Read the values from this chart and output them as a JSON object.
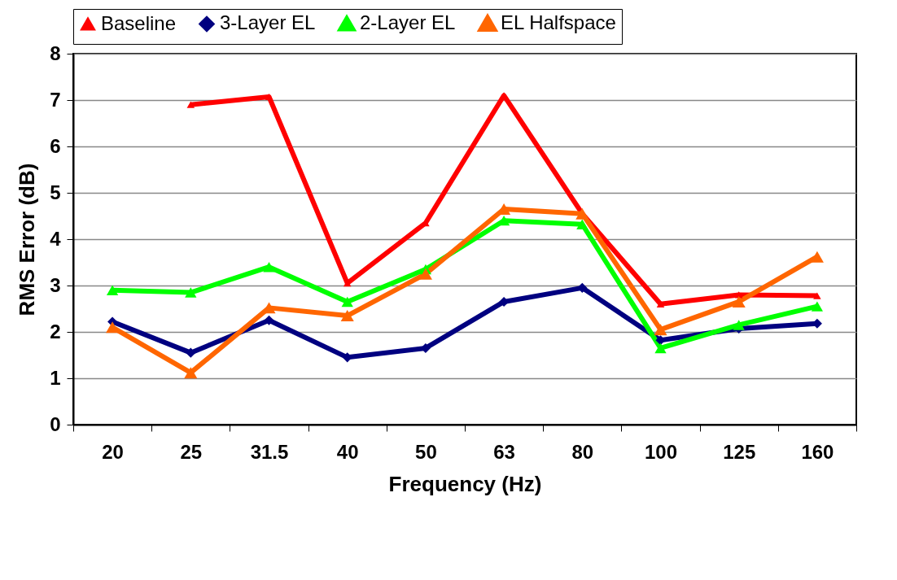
{
  "chart_data": {
    "type": "line",
    "xlabel": "Frequency (Hz)",
    "ylabel": "RMS Error (dB)",
    "categories": [
      "20",
      "25",
      "31.5",
      "40",
      "50",
      "63",
      "80",
      "100",
      "125",
      "160"
    ],
    "series": [
      {
        "name": "Baseline",
        "color": "#ff0000",
        "marker": "triangle",
        "values": [
          null,
          6.9,
          7.07,
          3.05,
          4.35,
          7.1,
          4.55,
          2.6,
          2.8,
          2.78
        ]
      },
      {
        "name": "3-Layer EL",
        "color": "#000080",
        "marker": "diamond",
        "values": [
          2.22,
          1.55,
          2.25,
          1.45,
          1.65,
          2.65,
          2.95,
          1.82,
          2.07,
          2.18
        ]
      },
      {
        "name": "2-Layer EL",
        "color": "#00ff00",
        "marker": "triangle",
        "values": [
          2.9,
          2.85,
          3.4,
          2.65,
          3.35,
          4.4,
          4.32,
          1.65,
          2.15,
          2.55
        ]
      },
      {
        "name": "EL Halfspace",
        "color": "#ff6600",
        "marker": "triangle",
        "values": [
          2.1,
          1.12,
          2.52,
          2.35,
          3.25,
          4.65,
          4.55,
          2.05,
          2.65,
          3.62
        ]
      }
    ],
    "ylim": [
      0,
      8
    ],
    "yticks": [
      0,
      1,
      2,
      3,
      4,
      5,
      6,
      7,
      8
    ],
    "grid": "y",
    "legend": "top",
    "line_style": "solid"
  }
}
